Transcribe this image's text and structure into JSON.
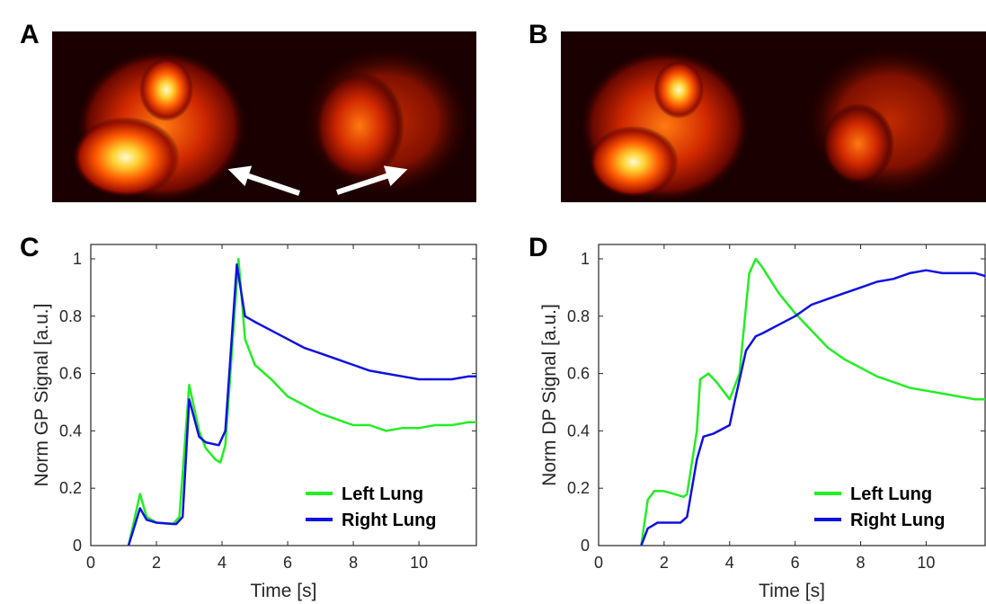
{
  "panels": {
    "a": {
      "label": "A"
    },
    "b": {
      "label": "B"
    },
    "c": {
      "label": "C"
    },
    "d": {
      "label": "D"
    }
  },
  "chart_data": [
    {
      "type": "line",
      "panel": "C",
      "xlabel": "Time [s]",
      "ylabel": "Norm GP Signal [a.u.]",
      "xlim": [
        0,
        11.75
      ],
      "ylim": [
        0,
        1.05
      ],
      "xticks": [
        0,
        2,
        4,
        6,
        8,
        10
      ],
      "yticks": [
        0,
        0.2,
        0.4,
        0.6,
        0.8,
        1
      ],
      "ytick_labels": [
        "0",
        "0.2",
        "0.4",
        "0.6",
        "0.8",
        "1"
      ],
      "legend_position": "bottom-right",
      "series": [
        {
          "name": "Left Lung",
          "color": "#22ee22",
          "x": [
            1.15,
            1.5,
            1.7,
            2,
            2.5,
            2.7,
            3.0,
            3.3,
            3.5,
            3.8,
            3.95,
            4.1,
            4.5,
            4.7,
            5,
            5.5,
            6,
            6.5,
            7,
            7.5,
            8,
            8.5,
            9,
            9.5,
            10,
            10.5,
            11,
            11.5,
            11.75
          ],
          "y": [
            0,
            0.18,
            0.1,
            0.08,
            0.075,
            0.1,
            0.56,
            0.4,
            0.34,
            0.3,
            0.29,
            0.35,
            1.0,
            0.72,
            0.63,
            0.58,
            0.52,
            0.49,
            0.46,
            0.44,
            0.42,
            0.42,
            0.4,
            0.41,
            0.41,
            0.42,
            0.42,
            0.43,
            0.43
          ]
        },
        {
          "name": "Right Lung",
          "color": "#1010e0",
          "x": [
            1.15,
            1.5,
            1.7,
            2,
            2.6,
            2.8,
            3.0,
            3.3,
            3.5,
            3.9,
            4.1,
            4.45,
            4.7,
            5,
            5.5,
            6,
            6.5,
            7,
            7.5,
            8,
            8.5,
            9,
            9.5,
            10,
            10.5,
            11,
            11.5,
            11.75
          ],
          "y": [
            0,
            0.13,
            0.09,
            0.08,
            0.075,
            0.1,
            0.51,
            0.38,
            0.36,
            0.35,
            0.4,
            0.98,
            0.8,
            0.78,
            0.75,
            0.72,
            0.69,
            0.67,
            0.65,
            0.63,
            0.61,
            0.6,
            0.59,
            0.58,
            0.58,
            0.58,
            0.59,
            0.59
          ]
        }
      ]
    },
    {
      "type": "line",
      "panel": "D",
      "xlabel": "Time [s]",
      "ylabel": "Norm DP Signal [a.u.]",
      "xlim": [
        0,
        11.8
      ],
      "ylim": [
        0,
        1.05
      ],
      "xticks": [
        0,
        2,
        4,
        6,
        8,
        10
      ],
      "yticks": [
        0,
        0.2,
        0.4,
        0.6,
        0.8,
        1
      ],
      "ytick_labels": [
        "0",
        "0.2",
        "0.4",
        "0.6",
        "0.8",
        "1"
      ],
      "legend_position": "bottom-right",
      "series": [
        {
          "name": "Left Lung",
          "color": "#22ee22",
          "x": [
            1.3,
            1.5,
            1.7,
            2,
            2.3,
            2.6,
            2.7,
            3.0,
            3.1,
            3.35,
            3.6,
            4.0,
            4.3,
            4.6,
            4.8,
            5,
            5.5,
            6,
            6.5,
            7,
            7.5,
            8,
            8.5,
            9,
            9.5,
            10,
            10.5,
            11,
            11.5,
            11.8
          ],
          "y": [
            0,
            0.16,
            0.19,
            0.19,
            0.18,
            0.17,
            0.18,
            0.4,
            0.58,
            0.6,
            0.57,
            0.51,
            0.6,
            0.95,
            1.0,
            0.97,
            0.88,
            0.81,
            0.75,
            0.69,
            0.65,
            0.62,
            0.59,
            0.57,
            0.55,
            0.54,
            0.53,
            0.52,
            0.51,
            0.51
          ]
        },
        {
          "name": "Right Lung",
          "color": "#1010e0",
          "x": [
            1.3,
            1.5,
            1.8,
            2,
            2.5,
            2.7,
            3.0,
            3.2,
            3.5,
            4.0,
            4.15,
            4.5,
            4.8,
            5,
            5.5,
            6,
            6.5,
            7,
            7.5,
            8,
            8.5,
            9,
            9.5,
            10,
            10.5,
            11,
            11.5,
            11.8
          ],
          "y": [
            0,
            0.06,
            0.08,
            0.08,
            0.08,
            0.1,
            0.3,
            0.38,
            0.39,
            0.42,
            0.5,
            0.68,
            0.73,
            0.74,
            0.77,
            0.8,
            0.84,
            0.86,
            0.88,
            0.9,
            0.92,
            0.93,
            0.95,
            0.96,
            0.95,
            0.95,
            0.95,
            0.94
          ]
        }
      ]
    }
  ]
}
